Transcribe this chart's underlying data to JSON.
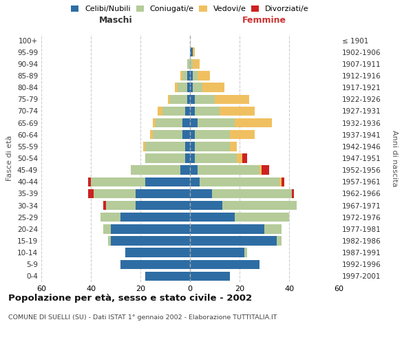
{
  "age_groups": [
    "0-4",
    "5-9",
    "10-14",
    "15-19",
    "20-24",
    "25-29",
    "30-34",
    "35-39",
    "40-44",
    "45-49",
    "50-54",
    "55-59",
    "60-64",
    "65-69",
    "70-74",
    "75-79",
    "80-84",
    "85-89",
    "90-94",
    "95-99",
    "100+"
  ],
  "birth_years": [
    "1997-2001",
    "1992-1996",
    "1987-1991",
    "1982-1986",
    "1977-1981",
    "1972-1976",
    "1967-1971",
    "1962-1966",
    "1957-1961",
    "1952-1956",
    "1947-1951",
    "1942-1946",
    "1937-1941",
    "1932-1936",
    "1927-1931",
    "1922-1926",
    "1917-1921",
    "1912-1916",
    "1907-1911",
    "1902-1906",
    "≤ 1901"
  ],
  "males": {
    "celibi": [
      18,
      28,
      26,
      32,
      32,
      28,
      22,
      22,
      18,
      4,
      2,
      2,
      3,
      3,
      2,
      1,
      1,
      1,
      0,
      0,
      0
    ],
    "coniugati": [
      0,
      0,
      0,
      1,
      3,
      8,
      12,
      17,
      22,
      20,
      16,
      16,
      12,
      11,
      9,
      7,
      4,
      2,
      1,
      0,
      0
    ],
    "vedovi": [
      0,
      0,
      0,
      0,
      0,
      0,
      0,
      0,
      0,
      0,
      0,
      1,
      1,
      1,
      2,
      1,
      1,
      1,
      0,
      0,
      0
    ],
    "divorziati": [
      0,
      0,
      0,
      0,
      0,
      0,
      1,
      2,
      1,
      0,
      0,
      0,
      0,
      0,
      0,
      0,
      0,
      0,
      0,
      0,
      0
    ]
  },
  "females": {
    "nubili": [
      16,
      28,
      22,
      35,
      30,
      18,
      13,
      9,
      4,
      3,
      2,
      2,
      2,
      3,
      2,
      2,
      1,
      1,
      0,
      1,
      0
    ],
    "coniugate": [
      0,
      0,
      1,
      2,
      7,
      22,
      30,
      32,
      32,
      25,
      17,
      14,
      14,
      15,
      10,
      8,
      4,
      2,
      1,
      0,
      0
    ],
    "vedove": [
      0,
      0,
      0,
      0,
      0,
      0,
      0,
      0,
      1,
      1,
      2,
      3,
      10,
      15,
      14,
      14,
      9,
      5,
      3,
      1,
      0
    ],
    "divorziate": [
      0,
      0,
      0,
      0,
      0,
      0,
      0,
      1,
      1,
      3,
      2,
      0,
      0,
      0,
      0,
      0,
      0,
      0,
      0,
      0,
      0
    ]
  },
  "colors": {
    "celibi": "#2e6da4",
    "coniugati": "#b5cb99",
    "vedovi": "#f0c060",
    "divorziati": "#cc2222"
  },
  "xlim": 60,
  "title": "Popolazione per età, sesso e stato civile - 2002",
  "subtitle": "COMUNE DI SUELLI (SU) - Dati ISTAT 1° gennaio 2002 - Elaborazione TUTTITALIA.IT",
  "ylabel_left": "Fasce di età",
  "ylabel_right": "Anni di nascita",
  "xlabel_maschi": "Maschi",
  "xlabel_femmine": "Femmine",
  "legend_labels": [
    "Celibi/Nubili",
    "Coniugati/e",
    "Vedovi/e",
    "Divorziati/e"
  ],
  "background_color": "#ffffff",
  "grid_color": "#cccccc"
}
